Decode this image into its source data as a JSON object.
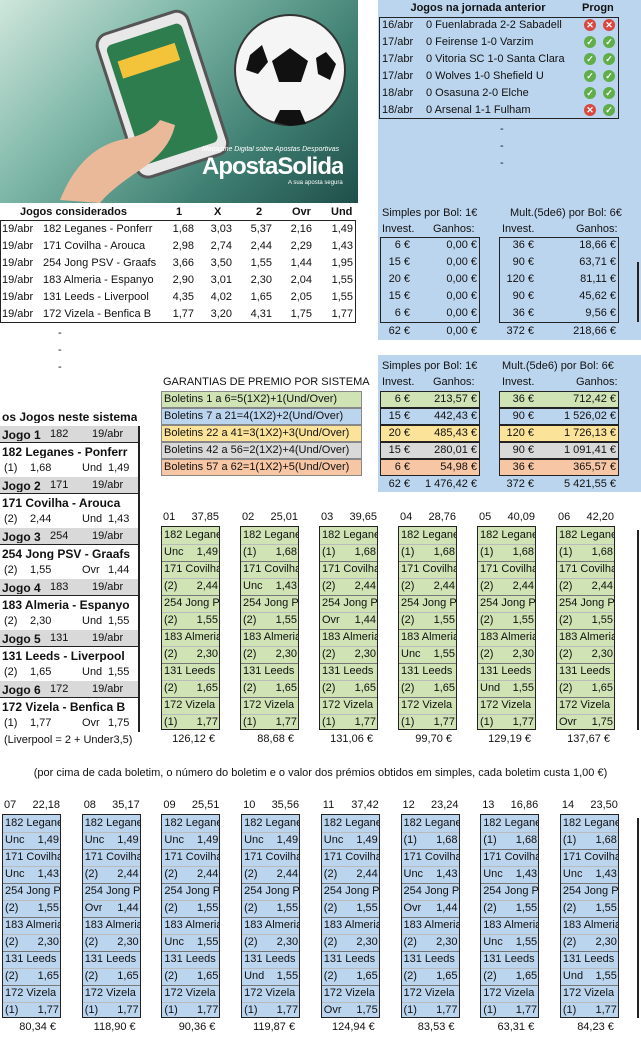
{
  "banner": {
    "brand": "ApostaSolida",
    "subtitle": "Magazine Digital sobre Apostas Desportivas",
    "tagline": "A sua aposta segura"
  },
  "previous": {
    "title": "Jogos na jornada anterior",
    "progn": "Progn",
    "rows": [
      {
        "date": "16/abr",
        "game": "0 Fuenlabrada 2-2 Sabadell",
        "m1": "ko",
        "m2": "ko"
      },
      {
        "date": "17/abr",
        "game": "0 Feirense 1-0 Varzim",
        "m1": "ok",
        "m2": "ok"
      },
      {
        "date": "17/abr",
        "game": "0 Vitoria SC 1-0 Santa Clara",
        "m1": "ok",
        "m2": "ok"
      },
      {
        "date": "17/abr",
        "game": "0 Wolves 1-0 Shefield U",
        "m1": "ok",
        "m2": "ok"
      },
      {
        "date": "18/abr",
        "game": "0 Osasuna 2-0 Elche",
        "m1": "ok",
        "m2": "ok"
      },
      {
        "date": "18/abr",
        "game": "0 Arsenal 1-1 Fulham",
        "m1": "ko",
        "m2": "ok"
      }
    ],
    "dashes": [
      "-",
      "-",
      "-"
    ]
  },
  "considered": {
    "headers": [
      "Jogos considerados",
      "1",
      "X",
      "2",
      "Ovr",
      "Und"
    ],
    "rows": [
      [
        "19/abr",
        "182 Leganes - Ponferr",
        "1,68",
        "3,03",
        "5,37",
        "2,16",
        "1,49"
      ],
      [
        "19/abr",
        "171 Covilha - Arouca",
        "2,98",
        "2,74",
        "2,44",
        "2,29",
        "1,43"
      ],
      [
        "19/abr",
        "254 Jong PSV - Graafs",
        "3,66",
        "3,50",
        "1,55",
        "1,44",
        "1,95"
      ],
      [
        "19/abr",
        "183 Almeria - Espanyo",
        "2,90",
        "3,01",
        "2,30",
        "2,04",
        "1,55"
      ],
      [
        "19/abr",
        "131 Leeds - Liverpool",
        "4,35",
        "4,02",
        "1,65",
        "2,05",
        "1,55"
      ],
      [
        "19/abr",
        "172 Vizela - Benfica B",
        "1,77",
        "3,20",
        "4,31",
        "1,75",
        "1,77"
      ]
    ],
    "dashes": [
      "-",
      "-",
      "-"
    ]
  },
  "simples": {
    "title": "Simples por Bol: 1€",
    "h1": "Invest.",
    "h2": "Ganhos:",
    "rows": [
      [
        "6 €",
        "0,00 €"
      ],
      [
        "15 €",
        "0,00 €"
      ],
      [
        "20 €",
        "0,00 €"
      ],
      [
        "15 €",
        "0,00 €"
      ],
      [
        "6 €",
        "0,00 €"
      ]
    ],
    "total": [
      "62 €",
      "0,00 €"
    ]
  },
  "mult": {
    "title": "Mult.(5de6) por Bol: 6€",
    "h1": "Invest.",
    "h2": "Ganhos:",
    "rows": [
      [
        "36 €",
        "18,66 €"
      ],
      [
        "90 €",
        "63,71 €"
      ],
      [
        "120 €",
        "81,11 €"
      ],
      [
        "90 €",
        "45,62 €"
      ],
      [
        "36 €",
        "9,56 €"
      ]
    ],
    "total": [
      "372 €",
      "218,66 €"
    ]
  },
  "guarantees": {
    "title": "GARANTIAS DE PRÉMIO POR SISTEMA",
    "rows": [
      {
        "label": "Boletins   1 a  6=5(1X2)+1(Und/Over)",
        "s1": "6 €",
        "s2": "213,57 €",
        "m1": "36 €",
        "m2": "712,42 €"
      },
      {
        "label": "Boletins   7 a 21=4(1X2)+2(Und/Over)",
        "s1": "15 €",
        "s2": "442,43 €",
        "m1": "90 €",
        "m2": "1 526,02 €"
      },
      {
        "label": "Boletins 22 a 41=3(1X2)+3(Und/Over)",
        "s1": "20 €",
        "s2": "485,43 €",
        "m1": "120 €",
        "m2": "1 726,13 €"
      },
      {
        "label": "Boletins 42 a 56=2(1X2)+4(Und/Over)",
        "s1": "15 €",
        "s2": "280,01 €",
        "m1": "90 €",
        "m2": "1 091,41 €"
      },
      {
        "label": "Boletins 57 a 62=1(1X2)+5(Und/Over)",
        "s1": "6 €",
        "s2": "54,98 €",
        "m1": "36 €",
        "m2": "365,57 €"
      }
    ],
    "simples_title": "Simples por Bol: 1€",
    "mult_title": "Mult.(5de6) por Bol: 6€",
    "h1": "Invest.",
    "h2": "Ganhos:",
    "total": [
      "62 €",
      "1 476,42 €",
      "372 €",
      "5 421,55 €"
    ]
  },
  "games": {
    "title": "os Jogos neste sistema",
    "list": [
      {
        "label": "Jogo 1",
        "code": "182",
        "date": "19/abr",
        "teams": "182 Leganes  -  Ponferr",
        "pick": "(1)",
        "odd1": "1,68",
        "type": "Und",
        "odd2": "1,49"
      },
      {
        "label": "Jogo 2",
        "code": "171",
        "date": "19/abr",
        "teams": "171 Covilha  -  Arouca",
        "pick": "(2)",
        "odd1": "2,44",
        "type": "Und",
        "odd2": "1,43"
      },
      {
        "label": "Jogo 3",
        "code": "254",
        "date": "19/abr",
        "teams": "254 Jong PSV  -  Graafs",
        "pick": "(2)",
        "odd1": "1,55",
        "type": "Ovr",
        "odd2": "1,44"
      },
      {
        "label": "Jogo 4",
        "code": "183",
        "date": "19/abr",
        "teams": "183 Almeria  -  Espanyo",
        "pick": "(2)",
        "odd1": "2,30",
        "type": "Und",
        "odd2": "1,55"
      },
      {
        "label": "Jogo 5",
        "code": "131",
        "date": "19/abr",
        "teams": "131 Leeds  -  Liverpool",
        "pick": "(2)",
        "odd1": "1,65",
        "type": "Und",
        "odd2": "1,55"
      },
      {
        "label": "Jogo 6",
        "code": "172",
        "date": "19/abr",
        "teams": "172 Vizela  -  Benfica B",
        "pick": "(1)",
        "odd1": "1,77",
        "type": "Ovr",
        "odd2": "1,75"
      }
    ],
    "note": "(Liverpool = 2 + Under3,5)"
  },
  "explain": "(por cima de cada boletim, o número do boletim e o valor dos prémios obtidos em simples, cada boletim custa 1,00 €)",
  "boletins1": [
    {
      "n": "01",
      "v": "37,85",
      "total": "126,12 €",
      "rows": [
        [
          "182 Legane",
          "Unc",
          "1,49"
        ],
        [
          "171 Covilha",
          "(2)",
          "2,44"
        ],
        [
          "254 Jong P",
          "(2)",
          "1,55"
        ],
        [
          "183 Almeria",
          "(2)",
          "2,30"
        ],
        [
          "131 Leeds",
          "(2)",
          "1,65"
        ],
        [
          "172 Vizela",
          "(1)",
          "1,77"
        ]
      ]
    },
    {
      "n": "02",
      "v": "25,01",
      "total": "88,68 €",
      "rows": [
        [
          "182 Legane",
          "(1)",
          "1,68"
        ],
        [
          "171 Covilha",
          "Unc",
          "1,43"
        ],
        [
          "254 Jong P",
          "(2)",
          "1,55"
        ],
        [
          "183 Almeria",
          "(2)",
          "2,30"
        ],
        [
          "131 Leeds",
          "(2)",
          "1,65"
        ],
        [
          "172 Vizela",
          "(1)",
          "1,77"
        ]
      ]
    },
    {
      "n": "03",
      "v": "39,65",
      "total": "131,06 €",
      "rows": [
        [
          "182 Legane",
          "(1)",
          "1,68"
        ],
        [
          "171 Covilha",
          "(2)",
          "2,44"
        ],
        [
          "254 Jong P",
          "Ovr",
          "1,44"
        ],
        [
          "183 Almeria",
          "(2)",
          "2,30"
        ],
        [
          "131 Leeds",
          "(2)",
          "1,65"
        ],
        [
          "172 Vizela",
          "(1)",
          "1,77"
        ]
      ]
    },
    {
      "n": "04",
      "v": "28,76",
      "total": "99,70 €",
      "rows": [
        [
          "182 Legane",
          "(1)",
          "1,68"
        ],
        [
          "171 Covilha",
          "(2)",
          "2,44"
        ],
        [
          "254 Jong P",
          "(2)",
          "1,55"
        ],
        [
          "183 Almeria",
          "Unc",
          "1,55"
        ],
        [
          "131 Leeds",
          "(2)",
          "1,65"
        ],
        [
          "172 Vizela",
          "(1)",
          "1,77"
        ]
      ]
    },
    {
      "n": "05",
      "v": "40,09",
      "total": "129,19 €",
      "rows": [
        [
          "182 Legane",
          "(1)",
          "1,68"
        ],
        [
          "171 Covilha",
          "(2)",
          "2,44"
        ],
        [
          "254 Jong P",
          "(2)",
          "1,55"
        ],
        [
          "183 Almeria",
          "(2)",
          "2,30"
        ],
        [
          "131 Leeds",
          "Und",
          "1,55"
        ],
        [
          "172 Vizela",
          "(1)",
          "1,77"
        ]
      ]
    },
    {
      "n": "06",
      "v": "42,20",
      "total": "137,67 €",
      "rows": [
        [
          "182 Legane",
          "(1)",
          "1,68"
        ],
        [
          "171 Covilha",
          "(2)",
          "2,44"
        ],
        [
          "254 Jong P",
          "(2)",
          "1,55"
        ],
        [
          "183 Almeria",
          "(2)",
          "2,30"
        ],
        [
          "131 Leeds",
          "(2)",
          "1,65"
        ],
        [
          "172 Vizela",
          "Ovr",
          "1,75"
        ]
      ]
    }
  ],
  "boletins2": [
    {
      "n": "07",
      "v": "22,18",
      "total": "80,34 €",
      "rows": [
        [
          "182 Legane",
          "Unc",
          "1,49"
        ],
        [
          "171 Covilha",
          "Unc",
          "1,43"
        ],
        [
          "254 Jong P",
          "(2)",
          "1,55"
        ],
        [
          "183 Almeria",
          "(2)",
          "2,30"
        ],
        [
          "131 Leeds",
          "(2)",
          "1,65"
        ],
        [
          "172 Vizela",
          "(1)",
          "1,77"
        ]
      ]
    },
    {
      "n": "08",
      "v": "35,17",
      "total": "118,90 €",
      "rows": [
        [
          "182 Legane",
          "Unc",
          "1,49"
        ],
        [
          "171 Covilha",
          "(2)",
          "2,44"
        ],
        [
          "254 Jong P",
          "Ovr",
          "1,44"
        ],
        [
          "183 Almeria",
          "(2)",
          "2,30"
        ],
        [
          "131 Leeds",
          "(2)",
          "1,65"
        ],
        [
          "172 Vizela",
          "(1)",
          "1,77"
        ]
      ]
    },
    {
      "n": "09",
      "v": "25,51",
      "total": "90,36 €",
      "rows": [
        [
          "182 Legane",
          "Unc",
          "1,49"
        ],
        [
          "171 Covilha",
          "(2)",
          "2,44"
        ],
        [
          "254 Jong P",
          "(2)",
          "1,55"
        ],
        [
          "183 Almeria",
          "Unc",
          "1,55"
        ],
        [
          "131 Leeds",
          "(2)",
          "1,65"
        ],
        [
          "172 Vizela",
          "(1)",
          "1,77"
        ]
      ]
    },
    {
      "n": "10",
      "v": "35,56",
      "total": "119,87 €",
      "rows": [
        [
          "182 Legane",
          "Unc",
          "1,49"
        ],
        [
          "171 Covilha",
          "(2)",
          "2,44"
        ],
        [
          "254 Jong P",
          "(2)",
          "1,55"
        ],
        [
          "183 Almeria",
          "(2)",
          "2,30"
        ],
        [
          "131 Leeds",
          "Und",
          "1,55"
        ],
        [
          "172 Vizela",
          "(1)",
          "1,77"
        ]
      ]
    },
    {
      "n": "11",
      "v": "37,42",
      "total": "124,94 €",
      "rows": [
        [
          "182 Legane",
          "Unc",
          "1,49"
        ],
        [
          "171 Covilha",
          "(2)",
          "2,44"
        ],
        [
          "254 Jong P",
          "(2)",
          "1,55"
        ],
        [
          "183 Almeria",
          "(2)",
          "2,30"
        ],
        [
          "131 Leeds",
          "(2)",
          "1,65"
        ],
        [
          "172 Vizela",
          "Ovr",
          "1,75"
        ]
      ]
    },
    {
      "n": "12",
      "v": "23,24",
      "total": "83,53 €",
      "rows": [
        [
          "182 Legane",
          "(1)",
          "1,68"
        ],
        [
          "171 Covilha",
          "Unc",
          "1,43"
        ],
        [
          "254 Jong P",
          "Ovr",
          "1,44"
        ],
        [
          "183 Almeria",
          "(2)",
          "2,30"
        ],
        [
          "131 Leeds",
          "(2)",
          "1,65"
        ],
        [
          "172 Vizela",
          "(1)",
          "1,77"
        ]
      ]
    },
    {
      "n": "13",
      "v": "16,86",
      "total": "63,31 €",
      "rows": [
        [
          "182 Legane",
          "(1)",
          "1,68"
        ],
        [
          "171 Covilha",
          "Unc",
          "1,43"
        ],
        [
          "254 Jong P",
          "(2)",
          "1,55"
        ],
        [
          "183 Almeria",
          "Unc",
          "1,55"
        ],
        [
          "131 Leeds",
          "(2)",
          "1,65"
        ],
        [
          "172 Vizela",
          "(1)",
          "1,77"
        ]
      ]
    },
    {
      "n": "14",
      "v": "23,50",
      "total": "84,23 €",
      "rows": [
        [
          "182 Legane",
          "(1)",
          "1,68"
        ],
        [
          "171 Covilha",
          "Unc",
          "1,43"
        ],
        [
          "254 Jong P",
          "(2)",
          "1,55"
        ],
        [
          "183 Almeria",
          "(2)",
          "2,30"
        ],
        [
          "131 Leeds",
          "Und",
          "1,55"
        ],
        [
          "172 Vizela",
          "(1)",
          "1,77"
        ]
      ]
    }
  ]
}
